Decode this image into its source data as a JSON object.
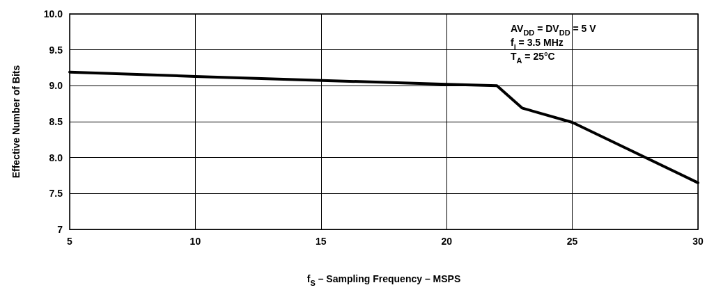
{
  "chart_data": {
    "type": "line",
    "xlabel": "f$_{S}$ – Sampling Frequency – MSPS",
    "ylabel": "Effective Number of Bits",
    "x": [
      5,
      10,
      20,
      22,
      23,
      25,
      30
    ],
    "series": [
      {
        "color": "#000000",
        "values": [
          9.19,
          9.13,
          9.02,
          9.0,
          8.69,
          8.49,
          7.65
        ]
      }
    ],
    "xlim": [
      5,
      30
    ],
    "xticks": [
      5,
      10,
      15,
      20,
      25,
      30
    ],
    "ylim": [
      7,
      10
    ],
    "yticks": [
      7,
      {
        "value": 7.5,
        "label": "7.5"
      },
      {
        "value": 8,
        "label": "8.0"
      },
      {
        "value": 8.5,
        "label": "8.5"
      },
      {
        "value": 9,
        "label": "9.0"
      },
      {
        "value": 9.5,
        "label": "9.5"
      },
      {
        "value": 10,
        "label": "10.0"
      }
    ],
    "annotations": [
      "AV$_{DD}$ = DV$_{DD}$ = 5 V",
      "f$_{i}$ = 3.5 MHz",
      "T$_{A}$ = 25°C"
    ],
    "grid": true,
    "marker": "none",
    "line_style": "solid"
  }
}
